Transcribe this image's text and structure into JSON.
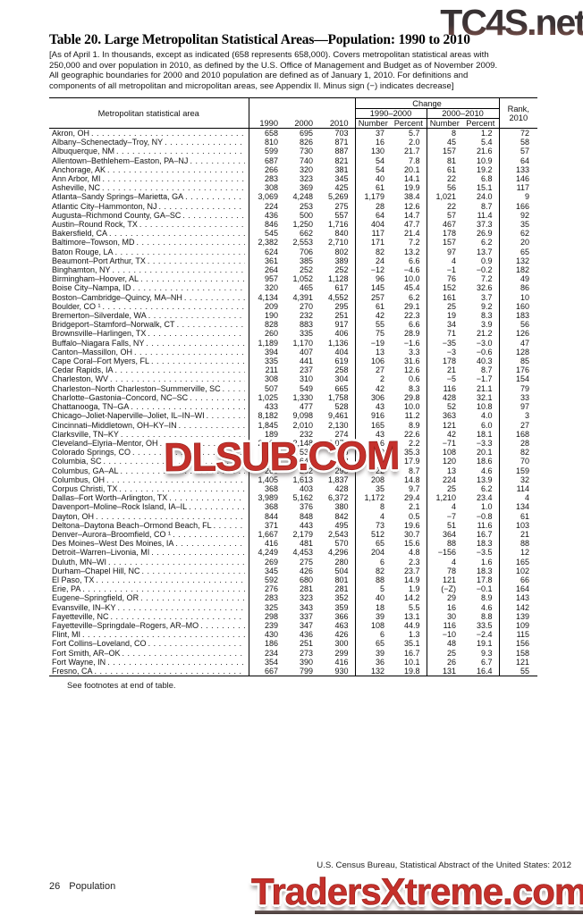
{
  "colors": {
    "watermark_red": "#c5302b",
    "wm_outline": "#ffffff",
    "wm_dark_red": "#8c1d17",
    "wm_top_dark": "#3f3634",
    "wm_top_red": "#82524a"
  },
  "watermarks": {
    "top": "TC4S.net",
    "middle": "DLSUB.COM",
    "bottom": "TradersXtreme.com"
  },
  "title": "Table 20. Large Metropolitan Statistical Areas—Population: 1990 to 2010",
  "headnote": "[As of April 1. In thousands, except as indicated (658 represents 658,000). Covers metropolitan statistical areas with 250,000 and over population in 2010, as defined by the U.S. Office of Management and Budget as of November 2009. All geographic boundaries for 2000 and 2010 population are defined as of January 1, 2010. For definitions and components of all metropolitan and micropolitan areas, see Appendix II. Minus sign (−) indicates decrease]",
  "table": {
    "area_header": "Metropolitan statistical area",
    "change_label": "Change",
    "year_headers": [
      "1990",
      "2000",
      "2010"
    ],
    "change_periods": [
      "1990–2000",
      "2000–2010"
    ],
    "change_subheaders": [
      "Number",
      "Percent"
    ],
    "rank_line1": "Rank,",
    "rank_line2": "2010",
    "rows": [
      {
        "name": "Akron, OH",
        "v": [
          "658",
          "695",
          "703",
          "37",
          "5.7",
          "8",
          "1.2",
          "72"
        ]
      },
      {
        "name": "Albany–Schenectady–Troy, NY",
        "v": [
          "810",
          "826",
          "871",
          "16",
          "2.0",
          "45",
          "5.4",
          "58"
        ]
      },
      {
        "name": "Albuquerque, NM",
        "v": [
          "599",
          "730",
          "887",
          "130",
          "21.7",
          "157",
          "21.6",
          "57"
        ]
      },
      {
        "name": "Allentown–Bethlehem–Easton, PA–NJ",
        "v": [
          "687",
          "740",
          "821",
          "54",
          "7.8",
          "81",
          "10.9",
          "64"
        ]
      },
      {
        "name": "Anchorage, AK",
        "v": [
          "266",
          "320",
          "381",
          "54",
          "20.1",
          "61",
          "19.2",
          "133"
        ]
      },
      {
        "name": "Ann Arbor, MI",
        "v": [
          "283",
          "323",
          "345",
          "40",
          "14.1",
          "22",
          "6.8",
          "146"
        ]
      },
      {
        "name": "Asheville, NC",
        "v": [
          "308",
          "369",
          "425",
          "61",
          "19.9",
          "56",
          "15.1",
          "117"
        ]
      },
      {
        "name": "Atlanta–Sandy Springs–Marietta, GA",
        "v": [
          "3,069",
          "4,248",
          "5,269",
          "1,179",
          "38.4",
          "1,021",
          "24.0",
          "9"
        ]
      },
      {
        "name": "Atlantic City–Hammonton, NJ",
        "v": [
          "224",
          "253",
          "275",
          "28",
          "12.6",
          "22",
          "8.7",
          "166"
        ]
      },
      {
        "name": "Augusta–Richmond County, GA–SC",
        "v": [
          "436",
          "500",
          "557",
          "64",
          "14.7",
          "57",
          "11.4",
          "92"
        ]
      },
      {
        "name": "Austin–Round Rock, TX",
        "v": [
          "846",
          "1,250",
          "1,716",
          "404",
          "47.7",
          "467",
          "37.3",
          "35"
        ]
      },
      {
        "name": "Bakersfield, CA",
        "v": [
          "545",
          "662",
          "840",
          "117",
          "21.4",
          "178",
          "26.9",
          "62"
        ]
      },
      {
        "name": "Baltimore–Towson, MD",
        "v": [
          "2,382",
          "2,553",
          "2,710",
          "171",
          "7.2",
          "157",
          "6.2",
          "20"
        ]
      },
      {
        "name": "Baton Rouge, LA",
        "v": [
          "624",
          "706",
          "802",
          "82",
          "13.2",
          "97",
          "13.7",
          "65"
        ]
      },
      {
        "name": "Beaumont–Port Arthur, TX",
        "v": [
          "361",
          "385",
          "389",
          "24",
          "6.6",
          "4",
          "0.9",
          "132"
        ]
      },
      {
        "name": "Binghamton, NY",
        "v": [
          "264",
          "252",
          "252",
          "−12",
          "−4.6",
          "−1",
          "−0.2",
          "182"
        ]
      },
      {
        "name": "Birmingham–Hoover, AL",
        "v": [
          "957",
          "1,052",
          "1,128",
          "96",
          "10.0",
          "76",
          "7.2",
          "49"
        ]
      },
      {
        "name": "Boise City–Nampa, ID",
        "v": [
          "320",
          "465",
          "617",
          "145",
          "45.4",
          "152",
          "32.6",
          "86"
        ]
      },
      {
        "name": "Boston–Cambridge–Quincy, MA–NH",
        "v": [
          "4,134",
          "4,391",
          "4,552",
          "257",
          "6.2",
          "161",
          "3.7",
          "10"
        ]
      },
      {
        "name": "Boulder, CO ¹",
        "v": [
          "209",
          "270",
          "295",
          "61",
          "29.1",
          "25",
          "9.2",
          "160"
        ]
      },
      {
        "name": "Bremerton–Silverdale, WA",
        "v": [
          "190",
          "232",
          "251",
          "42",
          "22.3",
          "19",
          "8.3",
          "183"
        ]
      },
      {
        "name": "Bridgeport–Stamford–Norwalk, CT",
        "v": [
          "828",
          "883",
          "917",
          "55",
          "6.6",
          "34",
          "3.9",
          "56"
        ]
      },
      {
        "name": "Brownsville–Harlingen, TX",
        "v": [
          "260",
          "335",
          "406",
          "75",
          "28.9",
          "71",
          "21.2",
          "126"
        ]
      },
      {
        "name": "Buffalo–Niagara Falls, NY",
        "v": [
          "1,189",
          "1,170",
          "1,136",
          "−19",
          "−1.6",
          "−35",
          "−3.0",
          "47"
        ]
      },
      {
        "name": "Canton–Massillon, OH",
        "v": [
          "394",
          "407",
          "404",
          "13",
          "3.3",
          "−3",
          "−0.6",
          "128"
        ]
      },
      {
        "name": "Cape Coral–Fort Myers, FL",
        "v": [
          "335",
          "441",
          "619",
          "106",
          "31.6",
          "178",
          "40.3",
          "85"
        ]
      },
      {
        "name": "Cedar Rapids, IA",
        "v": [
          "211",
          "237",
          "258",
          "27",
          "12.6",
          "21",
          "8.7",
          "176"
        ]
      },
      {
        "name": "Charleston, WV",
        "v": [
          "308",
          "310",
          "304",
          "2",
          "0.6",
          "−5",
          "−1.7",
          "154"
        ]
      },
      {
        "name": "Charleston–North Charleston–Summerville, SC",
        "v": [
          "507",
          "549",
          "665",
          "42",
          "8.3",
          "116",
          "21.1",
          "79"
        ]
      },
      {
        "name": "Charlotte–Gastonia–Concord, NC–SC",
        "v": [
          "1,025",
          "1,330",
          "1,758",
          "306",
          "29.8",
          "428",
          "32.1",
          "33"
        ]
      },
      {
        "name": "Chattanooga, TN–GA",
        "v": [
          "433",
          "477",
          "528",
          "43",
          "10.0",
          "52",
          "10.8",
          "97"
        ]
      },
      {
        "name": "Chicago–Joliet-Naperville–Joliet, IL–IN–WI",
        "v": [
          "8,182",
          "9,098",
          "9,461",
          "916",
          "11.2",
          "363",
          "4.0",
          "3"
        ]
      },
      {
        "name": "Cincinnati–Middletown, OH–KY–IN",
        "v": [
          "1,845",
          "2,010",
          "2,130",
          "165",
          "8.9",
          "121",
          "6.0",
          "27"
        ]
      },
      {
        "name": "Clarksville, TN–KY",
        "v": [
          "189",
          "232",
          "274",
          "43",
          "22.6",
          "42",
          "18.1",
          "168"
        ]
      },
      {
        "name": "Cleveland–Elyria–Mentor, OH",
        "v": [
          "2,102",
          "2,148",
          "2,077",
          "46",
          "2.2",
          "−71",
          "−3.3",
          "28"
        ]
      },
      {
        "name": "Colorado Springs, CO",
        "v": [
          "397",
          "537",
          "645",
          "140",
          "35.3",
          "108",
          "20.1",
          "82"
        ]
      },
      {
        "name": "Columbia, SC",
        "v": [
          "549",
          "647",
          "768",
          "98",
          "17.9",
          "120",
          "18.6",
          "70"
        ]
      },
      {
        "name": "Columbus, GA–AL",
        "v": [
          "260",
          "282",
          "295",
          "22",
          "8.7",
          "13",
          "4.6",
          "159"
        ]
      },
      {
        "name": "Columbus, OH",
        "v": [
          "1,405",
          "1,613",
          "1,837",
          "208",
          "14.8",
          "224",
          "13.9",
          "32"
        ]
      },
      {
        "name": "Corpus Christi, TX",
        "v": [
          "368",
          "403",
          "428",
          "35",
          "9.7",
          "25",
          "6.2",
          "114"
        ]
      },
      {
        "name": "Dallas–Fort Worth–Arlington, TX",
        "v": [
          "3,989",
          "5,162",
          "6,372",
          "1,172",
          "29.4",
          "1,210",
          "23.4",
          "4"
        ]
      },
      {
        "name": "Davenport–Moline–Rock Island, IA–IL",
        "v": [
          "368",
          "376",
          "380",
          "8",
          "2.1",
          "4",
          "1.0",
          "134"
        ]
      },
      {
        "name": "Dayton, OH",
        "v": [
          "844",
          "848",
          "842",
          "4",
          "0.5",
          "−7",
          "−0.8",
          "61"
        ]
      },
      {
        "name": "Deltona–Daytona Beach–Ormond Beach, FL",
        "v": [
          "371",
          "443",
          "495",
          "73",
          "19.6",
          "51",
          "11.6",
          "103"
        ]
      },
      {
        "name": "Denver–Aurora–Broomfield, CO ¹",
        "v": [
          "1,667",
          "2,179",
          "2,543",
          "512",
          "30.7",
          "364",
          "16.7",
          "21"
        ]
      },
      {
        "name": "Des Moines–West Des Moines, IA",
        "v": [
          "416",
          "481",
          "570",
          "65",
          "15.6",
          "88",
          "18.3",
          "88"
        ]
      },
      {
        "name": "Detroit–Warren–Livonia, MI",
        "v": [
          "4,249",
          "4,453",
          "4,296",
          "204",
          "4.8",
          "−156",
          "−3.5",
          "12"
        ]
      },
      {
        "name": "Duluth, MN–WI",
        "v": [
          "269",
          "275",
          "280",
          "6",
          "2.3",
          "4",
          "1.6",
          "165"
        ]
      },
      {
        "name": "Durham–Chapel Hill, NC",
        "v": [
          "345",
          "426",
          "504",
          "82",
          "23.7",
          "78",
          "18.3",
          "102"
        ]
      },
      {
        "name": "El Paso, TX",
        "v": [
          "592",
          "680",
          "801",
          "88",
          "14.9",
          "121",
          "17.8",
          "66"
        ]
      },
      {
        "name": "Erie, PA",
        "v": [
          "276",
          "281",
          "281",
          "5",
          "1.9",
          "(−Z)",
          "−0.1",
          "164"
        ]
      },
      {
        "name": "Eugene–Springfield, OR",
        "v": [
          "283",
          "323",
          "352",
          "40",
          "14.2",
          "29",
          "8.9",
          "143"
        ]
      },
      {
        "name": "Evansville, IN–KY",
        "v": [
          "325",
          "343",
          "359",
          "18",
          "5.5",
          "16",
          "4.6",
          "142"
        ]
      },
      {
        "name": "Fayetteville, NC",
        "v": [
          "298",
          "337",
          "366",
          "39",
          "13.1",
          "30",
          "8.8",
          "139"
        ]
      },
      {
        "name": "Fayetteville–Springdale–Rogers, AR–MO",
        "v": [
          "239",
          "347",
          "463",
          "108",
          "44.9",
          "116",
          "33.5",
          "109"
        ]
      },
      {
        "name": "Flint, MI",
        "v": [
          "430",
          "436",
          "426",
          "6",
          "1.3",
          "−10",
          "−2.4",
          "115"
        ]
      },
      {
        "name": "Fort Collins–Loveland, CO",
        "v": [
          "186",
          "251",
          "300",
          "65",
          "35.1",
          "48",
          "19.1",
          "156"
        ]
      },
      {
        "name": "Fort Smith, AR–OK",
        "v": [
          "234",
          "273",
          "299",
          "39",
          "16.7",
          "25",
          "9.3",
          "158"
        ]
      },
      {
        "name": "Fort Wayne, IN",
        "v": [
          "354",
          "390",
          "416",
          "36",
          "10.1",
          "26",
          "6.7",
          "121"
        ]
      },
      {
        "name": "Fresno, CA",
        "v": [
          "667",
          "799",
          "930",
          "132",
          "19.8",
          "131",
          "16.4",
          "55"
        ]
      }
    ]
  },
  "footnote_note": "See footnotes at end of table.",
  "footer": {
    "page": "26",
    "section": "Population",
    "source": "U.S. Census Bureau, Statistical Abstract of the United States: 2012"
  }
}
